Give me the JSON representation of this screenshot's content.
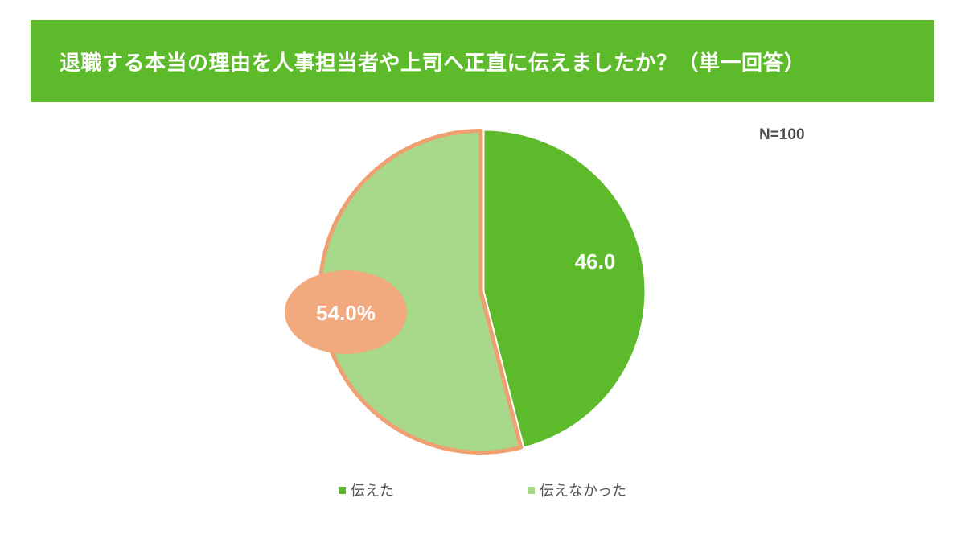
{
  "header": {
    "title": "退職する本当の理由を人事担当者や上司へ正直に伝えましたか？（単一回答）"
  },
  "sample_size": "N=100",
  "colors": {
    "banner": "#5dba2a",
    "told": "#5dba2a",
    "not_told": "#a8d98a",
    "highlight": "#f2a97d",
    "highlight_border": "#f0a070"
  },
  "chart_data": {
    "type": "pie",
    "title": "退職する本当の理由を人事担当者や上司へ正直に伝えましたか？（単一回答）",
    "categories": [
      "伝えた",
      "伝えなかった"
    ],
    "values": [
      46.0,
      54.0
    ],
    "data_labels": [
      "46.0",
      "54.0%"
    ],
    "highlighted": "伝えなかった",
    "legend_position": "bottom",
    "start": "top",
    "direction": "clockwise"
  },
  "legend": {
    "items": [
      {
        "label": "伝えた",
        "color": "#5dba2a"
      },
      {
        "label": "伝えなかった",
        "color": "#a8d98a"
      }
    ]
  }
}
